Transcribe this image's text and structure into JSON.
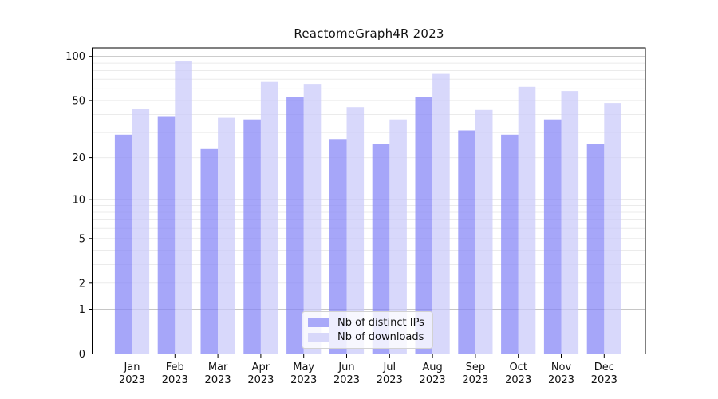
{
  "chart_data": {
    "type": "bar",
    "title": "ReactomeGraph4R 2023",
    "categories": [
      "Jan",
      "Feb",
      "Mar",
      "Apr",
      "May",
      "Jun",
      "Jul",
      "Aug",
      "Sep",
      "Oct",
      "Nov",
      "Dec"
    ],
    "category_year": "2023",
    "series": [
      {
        "name": "Nb of distinct IPs",
        "color": "#a9a9f9",
        "fill": "rgba(131,131,246,0.72)",
        "values": [
          29,
          39,
          23,
          37,
          53,
          27,
          25,
          53,
          31,
          29,
          37,
          25
        ]
      },
      {
        "name": "Nb of downloads",
        "color": "#d8d8fa",
        "fill": "rgba(201,201,249,0.72)",
        "values": [
          44,
          93,
          38,
          67,
          65,
          45,
          37,
          76,
          43,
          62,
          58,
          48
        ]
      }
    ],
    "y_ticks": [
      0,
      1,
      2,
      5,
      10,
      20,
      50,
      100
    ],
    "y_scale": "log1p",
    "ylim": [
      0,
      116
    ],
    "xlabel": "",
    "ylabel": "",
    "grid": "on",
    "grid_major_color": "#c6c6c6",
    "grid_minor_color": "#ebebeb",
    "legend_position": "lower center"
  }
}
